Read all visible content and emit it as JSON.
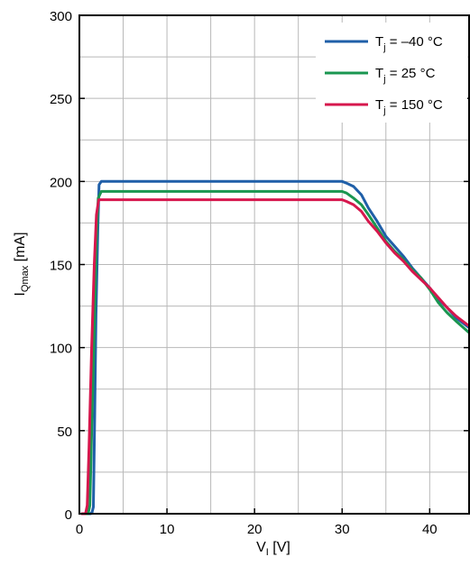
{
  "chart_data": {
    "type": "line",
    "title": "",
    "xlabel": {
      "main": "V",
      "sub": "I",
      "unit": " [V]"
    },
    "ylabel": {
      "main": "I",
      "sub": "Qmax",
      "unit": " [mA]"
    },
    "xlim": [
      0,
      44.5
    ],
    "ylim": [
      0,
      300
    ],
    "xticks": [
      0,
      10,
      20,
      30,
      40
    ],
    "yticks": [
      0,
      50,
      100,
      150,
      200,
      250,
      300
    ],
    "xgrid_step": 5,
    "ygrid_step": 25,
    "grid": true,
    "legend_position": "top-right",
    "series": [
      {
        "name": {
          "main": "T",
          "sub": "j",
          "rest": " = –40 °C"
        },
        "color": "#1f5fa8",
        "points": [
          [
            0.3,
            0
          ],
          [
            1.3,
            0
          ],
          [
            1.45,
            1
          ],
          [
            1.6,
            4
          ],
          [
            1.75,
            60
          ],
          [
            1.9,
            120
          ],
          [
            2.1,
            170
          ],
          [
            2.25,
            198
          ],
          [
            2.5,
            200
          ],
          [
            30,
            200
          ],
          [
            30.5,
            199
          ],
          [
            31.3,
            197
          ],
          [
            32.2,
            192
          ],
          [
            33,
            184
          ],
          [
            34,
            176
          ],
          [
            35,
            167
          ],
          [
            36,
            161
          ],
          [
            37,
            155
          ],
          [
            38,
            148
          ],
          [
            39,
            142
          ],
          [
            40,
            136
          ],
          [
            41,
            129
          ],
          [
            42,
            124
          ],
          [
            43,
            118
          ],
          [
            44.5,
            112
          ]
        ]
      },
      {
        "name": {
          "main": "T",
          "sub": "j",
          "rest": " = 25 °C"
        },
        "color": "#1a9650",
        "points": [
          [
            0.3,
            0
          ],
          [
            1.0,
            0
          ],
          [
            1.2,
            5
          ],
          [
            1.4,
            50
          ],
          [
            1.7,
            110
          ],
          [
            1.95,
            165
          ],
          [
            2.15,
            190
          ],
          [
            2.5,
            194
          ],
          [
            30,
            194
          ],
          [
            30.5,
            193
          ],
          [
            31.3,
            190
          ],
          [
            32.2,
            186
          ],
          [
            33,
            180
          ],
          [
            34,
            172
          ],
          [
            35,
            164
          ],
          [
            36,
            158
          ],
          [
            37,
            153
          ],
          [
            38,
            147
          ],
          [
            39,
            142
          ],
          [
            40,
            135
          ],
          [
            41,
            127
          ],
          [
            42,
            121
          ],
          [
            43,
            116
          ],
          [
            44.5,
            109
          ]
        ]
      },
      {
        "name": {
          "main": "T",
          "sub": "j",
          "rest": " = 150 °C"
        },
        "color": "#d6174d",
        "points": [
          [
            0.3,
            0
          ],
          [
            0.7,
            0
          ],
          [
            0.9,
            5
          ],
          [
            1.1,
            40
          ],
          [
            1.4,
            100
          ],
          [
            1.7,
            150
          ],
          [
            1.95,
            180
          ],
          [
            2.2,
            189
          ],
          [
            30,
            189
          ],
          [
            30.5,
            188
          ],
          [
            31.3,
            186
          ],
          [
            32.2,
            182
          ],
          [
            33,
            176
          ],
          [
            34,
            170
          ],
          [
            35,
            163
          ],
          [
            36,
            157
          ],
          [
            37,
            152
          ],
          [
            38,
            146
          ],
          [
            39,
            141
          ],
          [
            40,
            136
          ],
          [
            41,
            130
          ],
          [
            42,
            124
          ],
          [
            43,
            119
          ],
          [
            44.5,
            113
          ]
        ]
      }
    ]
  }
}
